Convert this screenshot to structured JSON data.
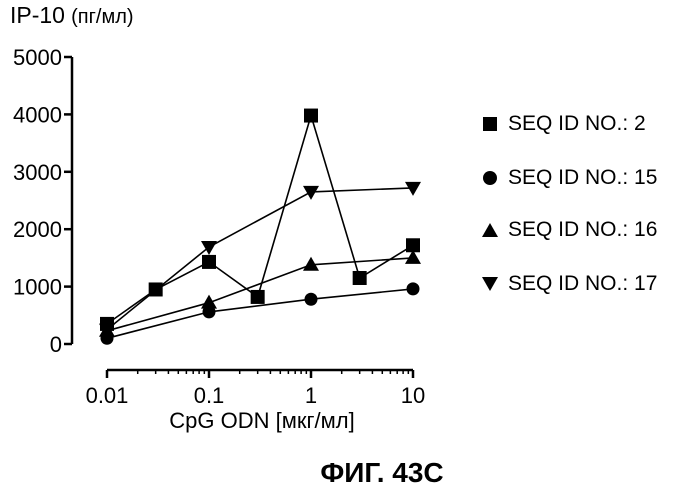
{
  "chart_data": {
    "type": "line",
    "title": "",
    "ylabel": "IP-10",
    "ylabel_unit": "(пг/мл)",
    "xlabel": "CpG ODN [мкг/мл]",
    "xscale": "log",
    "xlim": [
      0.01,
      10
    ],
    "ylim": [
      0,
      5000
    ],
    "xticks": [
      0.01,
      0.1,
      1,
      10
    ],
    "xtick_labels": [
      "0.01",
      "0.1",
      "1",
      "10"
    ],
    "yticks": [
      0,
      1000,
      2000,
      3000,
      4000,
      5000
    ],
    "ytick_labels": [
      "0",
      "1000",
      "2000",
      "3000",
      "4000",
      "5000"
    ],
    "legend_position": "right",
    "series": [
      {
        "name": "SEQ ID NO.: 2",
        "marker": "square",
        "x": [
          0.01,
          0.03,
          0.1,
          0.3,
          1,
          3,
          10
        ],
        "values": [
          350,
          950,
          1430,
          820,
          3980,
          1150,
          1720
        ]
      },
      {
        "name": "SEQ ID NO.: 15",
        "marker": "circle",
        "x": [
          0.01,
          0.1,
          1,
          10
        ],
        "values": [
          100,
          560,
          780,
          960
        ]
      },
      {
        "name": "SEQ ID NO.: 16",
        "marker": "triangle-up",
        "x": [
          0.01,
          0.1,
          1,
          10
        ],
        "values": [
          230,
          720,
          1380,
          1500
        ]
      },
      {
        "name": "SEQ ID NO.: 17",
        "marker": "triangle-down",
        "x": [
          0.01,
          0.1,
          1,
          10
        ],
        "values": [
          250,
          1690,
          2650,
          2720
        ]
      }
    ]
  },
  "caption": "ФИГ. 43С"
}
